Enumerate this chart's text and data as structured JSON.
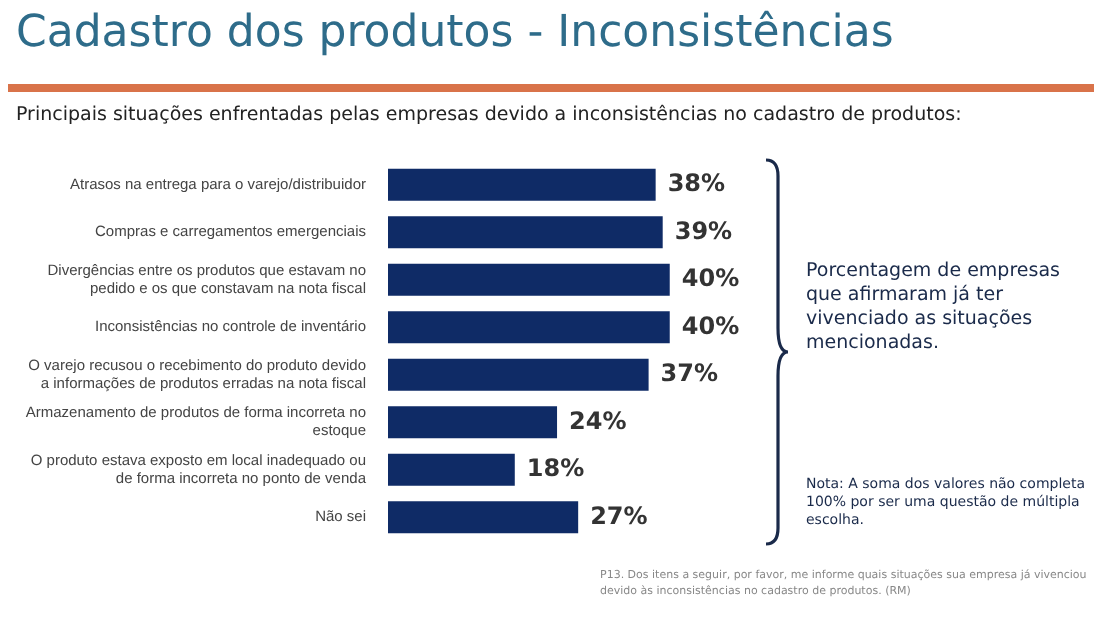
{
  "chart_data": {
    "type": "bar",
    "orientation": "horizontal",
    "title": "Cadastro dos produtos - Inconsistências",
    "subtitle": "Principais situações enfrentadas pelas empresas devido a inconsistências no cadastro de produtos:",
    "categories": [
      "Atrasos na entrega para o varejo/distribuidor",
      "Compras e carregamentos emergenciais",
      "Divergências entre os produtos que estavam no pedido e os que constavam na nota fiscal",
      "Inconsistências no controle de inventário",
      "O varejo recusou o recebimento do produto devido a informações de produtos erradas na nota fiscal",
      "Armazenamento de produtos de forma incorreta no estoque",
      "O produto estava exposto em local inadequado ou de forma incorreta no ponto de venda",
      "Não sei"
    ],
    "values": [
      38,
      39,
      40,
      40,
      37,
      24,
      18,
      27
    ],
    "value_labels": [
      "38%",
      "39%",
      "40%",
      "40%",
      "37%",
      "24%",
      "18%",
      "27%"
    ],
    "color": "#0f2b66",
    "annotations": [
      "Porcentagem de empresas que afirmaram já ter vivenciado as situações mencionadas.",
      "Nota: A soma dos valores não completa 100% por ser uma questão de múltipla escolha.",
      "P13. Dos itens a seguir, por favor, me informe quais situações sua empresa já vivenciou devido às inconsistências no cadastro de produtos. (RM)"
    ]
  }
}
